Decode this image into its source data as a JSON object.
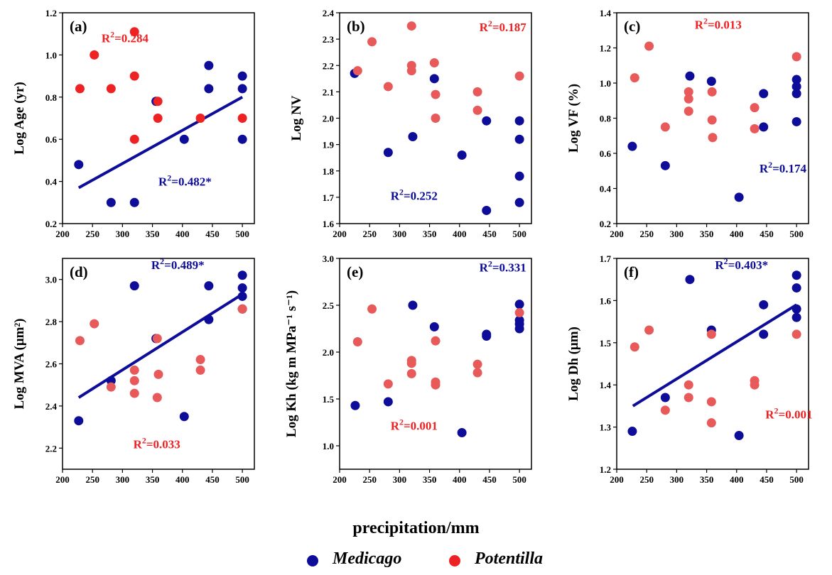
{
  "colors": {
    "medicago": "#0d0d9a",
    "potentilla": "#e85a5a",
    "potentilla_a": "#ee2222",
    "fit": "#0d0d9a",
    "r2_red": "#ee2222",
    "r2_blue": "#0d0d9a"
  },
  "xlabel": "precipitation/mm",
  "legend": [
    {
      "label": "Medicago",
      "color": "#0d0d9a"
    },
    {
      "label": "Potentilla",
      "color": "#ee2222"
    }
  ],
  "chart_data": [
    {
      "panel": "(a)",
      "type": "scatter",
      "ylabel": "Log Age (yr)",
      "xlim": [
        200,
        520
      ],
      "xticks": [
        200,
        250,
        300,
        350,
        400,
        450,
        500
      ],
      "ylim": [
        0.2,
        1.2
      ],
      "yticks": [
        "0.2",
        "0.4",
        "0.6",
        "0.8",
        "1.0",
        "1.2"
      ],
      "medicago": [
        [
          227,
          0.48
        ],
        [
          281,
          0.3
        ],
        [
          320,
          0.3
        ],
        [
          356,
          0.78
        ],
        [
          403,
          0.6
        ],
        [
          444,
          0.95
        ],
        [
          444,
          0.84
        ],
        [
          500,
          0.9
        ],
        [
          500,
          0.84
        ],
        [
          500,
          0.6
        ]
      ],
      "potentilla": [
        [
          229,
          0.84
        ],
        [
          253,
          1.0
        ],
        [
          281,
          0.84
        ],
        [
          320,
          1.11
        ],
        [
          320,
          0.9
        ],
        [
          320,
          0.6
        ],
        [
          359,
          0.78
        ],
        [
          359,
          0.7
        ],
        [
          430,
          0.7
        ],
        [
          500,
          0.7
        ]
      ],
      "fit": [
        [
          227,
          0.37
        ],
        [
          500,
          0.8
        ]
      ],
      "annotations": [
        {
          "text": "R²=0.284",
          "series": "potentilla",
          "x": 265,
          "y": 1.06
        },
        {
          "text": "R²=0.482*",
          "series": "medicago",
          "x": 360,
          "y": 0.38
        }
      ]
    },
    {
      "panel": "(b)",
      "type": "scatter",
      "ylabel": "Log NV",
      "xlim": [
        200,
        520
      ],
      "xticks": [
        200,
        250,
        300,
        350,
        400,
        450,
        500
      ],
      "ylim": [
        1.6,
        2.4
      ],
      "yticks": [
        "1.6",
        "1.7",
        "1.8",
        "1.9",
        "2.0",
        "2.1",
        "2.2",
        "2.3",
        "2.4"
      ],
      "medicago": [
        [
          225,
          2.17
        ],
        [
          281,
          1.87
        ],
        [
          322,
          1.93
        ],
        [
          358,
          2.15
        ],
        [
          404,
          1.86
        ],
        [
          445,
          1.99
        ],
        [
          445,
          1.65
        ],
        [
          500,
          1.99
        ],
        [
          500,
          1.92
        ],
        [
          500,
          1.78
        ],
        [
          500,
          1.68
        ]
      ],
      "potentilla": [
        [
          230,
          2.18
        ],
        [
          254,
          2.29
        ],
        [
          281,
          2.12
        ],
        [
          320,
          2.35
        ],
        [
          320,
          2.2
        ],
        [
          320,
          2.18
        ],
        [
          358,
          2.21
        ],
        [
          360,
          2.09
        ],
        [
          360,
          2.0
        ],
        [
          430,
          2.1
        ],
        [
          430,
          2.03
        ],
        [
          500,
          2.16
        ]
      ],
      "fit": [],
      "annotations": [
        {
          "text": "R²=0.187",
          "series": "potentilla",
          "x": 433,
          "y": 2.33
        },
        {
          "text": "R²=0.252",
          "series": "medicago",
          "x": 285,
          "y": 1.69
        }
      ]
    },
    {
      "panel": "(c)",
      "type": "scatter",
      "ylabel": "Log VF (%)",
      "xlim": [
        200,
        520
      ],
      "xticks": [
        200,
        250,
        300,
        350,
        400,
        450,
        500
      ],
      "ylim": [
        0.2,
        1.4
      ],
      "yticks": [
        "0.2",
        "0.4",
        "0.6",
        "0.8",
        "1.0",
        "1.2",
        "1.4"
      ],
      "medicago": [
        [
          226,
          0.64
        ],
        [
          281,
          0.53
        ],
        [
          322,
          1.04
        ],
        [
          358,
          1.01
        ],
        [
          404,
          0.35
        ],
        [
          445,
          0.94
        ],
        [
          445,
          0.75
        ],
        [
          500,
          1.02
        ],
        [
          500,
          0.98
        ],
        [
          500,
          0.94
        ],
        [
          500,
          0.78
        ]
      ],
      "potentilla": [
        [
          230,
          1.03
        ],
        [
          254,
          1.21
        ],
        [
          281,
          0.75
        ],
        [
          320,
          0.95
        ],
        [
          320,
          0.91
        ],
        [
          320,
          0.84
        ],
        [
          359,
          0.95
        ],
        [
          359,
          0.79
        ],
        [
          360,
          0.69
        ],
        [
          430,
          0.86
        ],
        [
          430,
          0.74
        ],
        [
          500,
          1.15
        ]
      ],
      "fit": [],
      "annotations": [
        {
          "text": "R²=0.013",
          "series": "potentilla",
          "x": 330,
          "y": 1.31
        },
        {
          "text": "R²=0.174",
          "series": "medicago",
          "x": 438,
          "y": 0.49
        }
      ]
    },
    {
      "panel": "(d)",
      "type": "scatter",
      "ylabel": "Log MVA (μm²)",
      "xlim": [
        200,
        520
      ],
      "xticks": [
        200,
        250,
        300,
        350,
        400,
        450,
        500
      ],
      "ylim": [
        2.1,
        3.1
      ],
      "yticks": [
        "2.2",
        "2.4",
        "2.6",
        "2.8",
        "3.0"
      ],
      "medicago": [
        [
          227,
          2.33
        ],
        [
          281,
          2.52
        ],
        [
          320,
          2.97
        ],
        [
          356,
          2.72
        ],
        [
          403,
          2.35
        ],
        [
          444,
          2.97
        ],
        [
          444,
          2.81
        ],
        [
          500,
          3.02
        ],
        [
          500,
          2.96
        ],
        [
          500,
          2.92
        ],
        [
          500,
          2.86
        ]
      ],
      "potentilla": [
        [
          229,
          2.71
        ],
        [
          253,
          2.79
        ],
        [
          281,
          2.49
        ],
        [
          320,
          2.57
        ],
        [
          320,
          2.52
        ],
        [
          320,
          2.46
        ],
        [
          358,
          2.72
        ],
        [
          358,
          2.44
        ],
        [
          360,
          2.55
        ],
        [
          430,
          2.62
        ],
        [
          430,
          2.57
        ],
        [
          500,
          2.86
        ]
      ],
      "fit": [
        [
          227,
          2.44
        ],
        [
          500,
          2.93
        ]
      ],
      "annotations": [
        {
          "text": "R²=0.489*",
          "series": "medicago",
          "x": 348,
          "y": 3.05
        },
        {
          "text": "R²=0.033",
          "series": "potentilla",
          "x": 318,
          "y": 2.2
        }
      ]
    },
    {
      "panel": "(e)",
      "type": "scatter",
      "ylabel": "Log Kh (kg m MPa⁻¹ s⁻¹)",
      "xlim": [
        200,
        520
      ],
      "xticks": [
        200,
        250,
        300,
        350,
        400,
        450,
        500
      ],
      "ylim": [
        0.75,
        3.0
      ],
      "yticks": [
        "1.0",
        "1.5",
        "2.0",
        "2.5",
        "3.0"
      ],
      "medicago": [
        [
          226,
          1.43
        ],
        [
          281,
          1.47
        ],
        [
          322,
          2.5
        ],
        [
          358,
          2.27
        ],
        [
          404,
          1.14
        ],
        [
          445,
          2.19
        ],
        [
          445,
          2.17
        ],
        [
          500,
          2.51
        ],
        [
          500,
          2.34
        ],
        [
          500,
          2.3
        ],
        [
          500,
          2.25
        ]
      ],
      "potentilla": [
        [
          230,
          2.11
        ],
        [
          254,
          2.46
        ],
        [
          281,
          1.66
        ],
        [
          320,
          1.91
        ],
        [
          320,
          1.88
        ],
        [
          320,
          1.77
        ],
        [
          360,
          2.12
        ],
        [
          360,
          1.68
        ],
        [
          360,
          1.65
        ],
        [
          430,
          1.87
        ],
        [
          430,
          1.78
        ],
        [
          500,
          2.42
        ]
      ],
      "fit": [],
      "annotations": [
        {
          "text": "R²=0.331",
          "series": "medicago",
          "x": 433,
          "y": 2.86
        },
        {
          "text": "R²=0.001",
          "series": "potentilla",
          "x": 285,
          "y": 1.17
        }
      ]
    },
    {
      "panel": "(f)",
      "type": "scatter",
      "ylabel": "Log Dh (μm)",
      "xlim": [
        200,
        520
      ],
      "xticks": [
        200,
        250,
        300,
        350,
        400,
        450,
        500
      ],
      "ylim": [
        1.2,
        1.7
      ],
      "yticks": [
        "1.2",
        "1.3",
        "1.4",
        "1.5",
        "1.6",
        "1.7"
      ],
      "medicago": [
        [
          226,
          1.29
        ],
        [
          281,
          1.37
        ],
        [
          322,
          1.65
        ],
        [
          358,
          1.53
        ],
        [
          404,
          1.28
        ],
        [
          445,
          1.59
        ],
        [
          445,
          1.52
        ],
        [
          500,
          1.66
        ],
        [
          500,
          1.63
        ],
        [
          500,
          1.58
        ],
        [
          500,
          1.56
        ]
      ],
      "potentilla": [
        [
          230,
          1.49
        ],
        [
          254,
          1.53
        ],
        [
          281,
          1.34
        ],
        [
          320,
          1.4
        ],
        [
          320,
          1.37
        ],
        [
          358,
          1.52
        ],
        [
          358,
          1.36
        ],
        [
          358,
          1.31
        ],
        [
          430,
          1.41
        ],
        [
          430,
          1.4
        ],
        [
          500,
          1.52
        ]
      ],
      "fit": [
        [
          227,
          1.35
        ],
        [
          500,
          1.59
        ]
      ],
      "annotations": [
        {
          "text": "R²=0.403*",
          "series": "medicago",
          "x": 364,
          "y": 1.675
        },
        {
          "text": "R²=0.001",
          "series": "potentilla",
          "x": 448,
          "y": 1.32
        }
      ]
    }
  ]
}
